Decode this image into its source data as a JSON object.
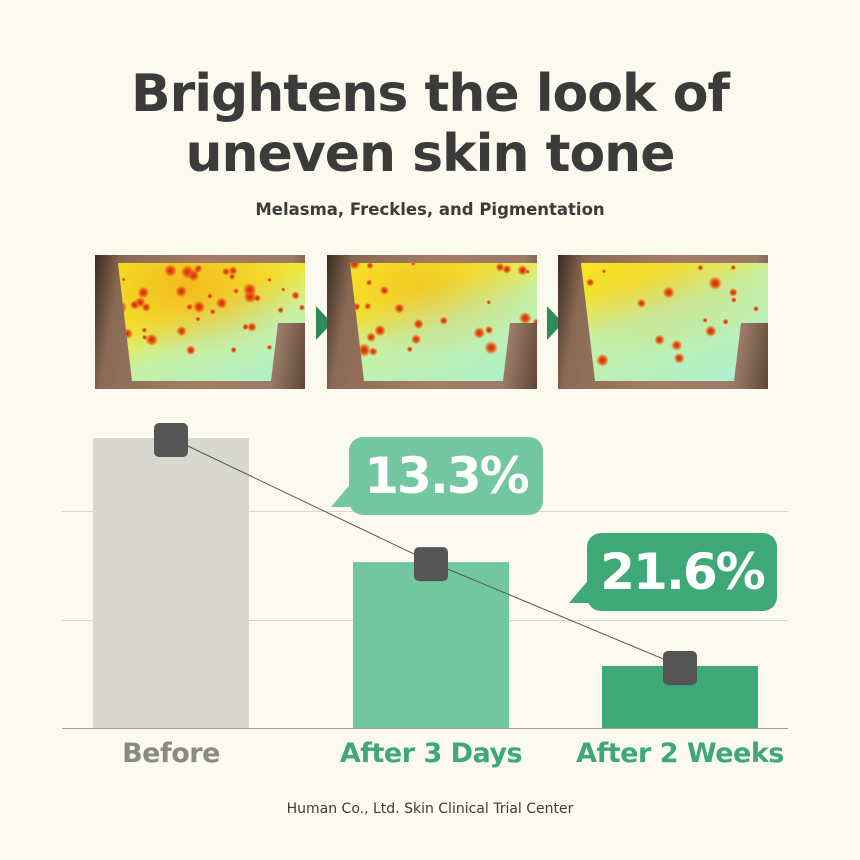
{
  "header": {
    "title_line1": "Brightens the look of",
    "title_line2": "uneven skin tone",
    "subtitle": "Melasma, Freckles, and Pigmentation"
  },
  "images": [
    {
      "label": "before-pigmentation-map"
    },
    {
      "label": "after-3-days-pigmentation-map"
    },
    {
      "label": "after-2-weeks-pigmentation-map"
    }
  ],
  "icons": {
    "step_arrow": "triangle-right-icon",
    "marker": "rounded-square-marker"
  },
  "chart_data": {
    "type": "bar",
    "categories": [
      "Before",
      "After 3 Days",
      "After 2 Weeks"
    ],
    "values": [
      100,
      57.2,
      21.4
    ],
    "value_unit": "relative pigmentation (no axis values printed)",
    "colors": [
      "#d8d8d0",
      "#72c6a0",
      "#3fa877"
    ],
    "category_label_colors": [
      "#8a8a85",
      "#3fa877",
      "#3fa877"
    ],
    "trend_line": true,
    "callouts": [
      {
        "category": "After 3 Days",
        "text": "13.3%",
        "color": "#72c6a0"
      },
      {
        "category": "After 2 Weeks",
        "text": "21.6%",
        "color": "#3fa877"
      }
    ],
    "grid": true,
    "title": "",
    "xlabel": "",
    "ylabel": ""
  },
  "footer": {
    "source": "Human Co., Ltd. Skin Clinical Trial Center"
  }
}
